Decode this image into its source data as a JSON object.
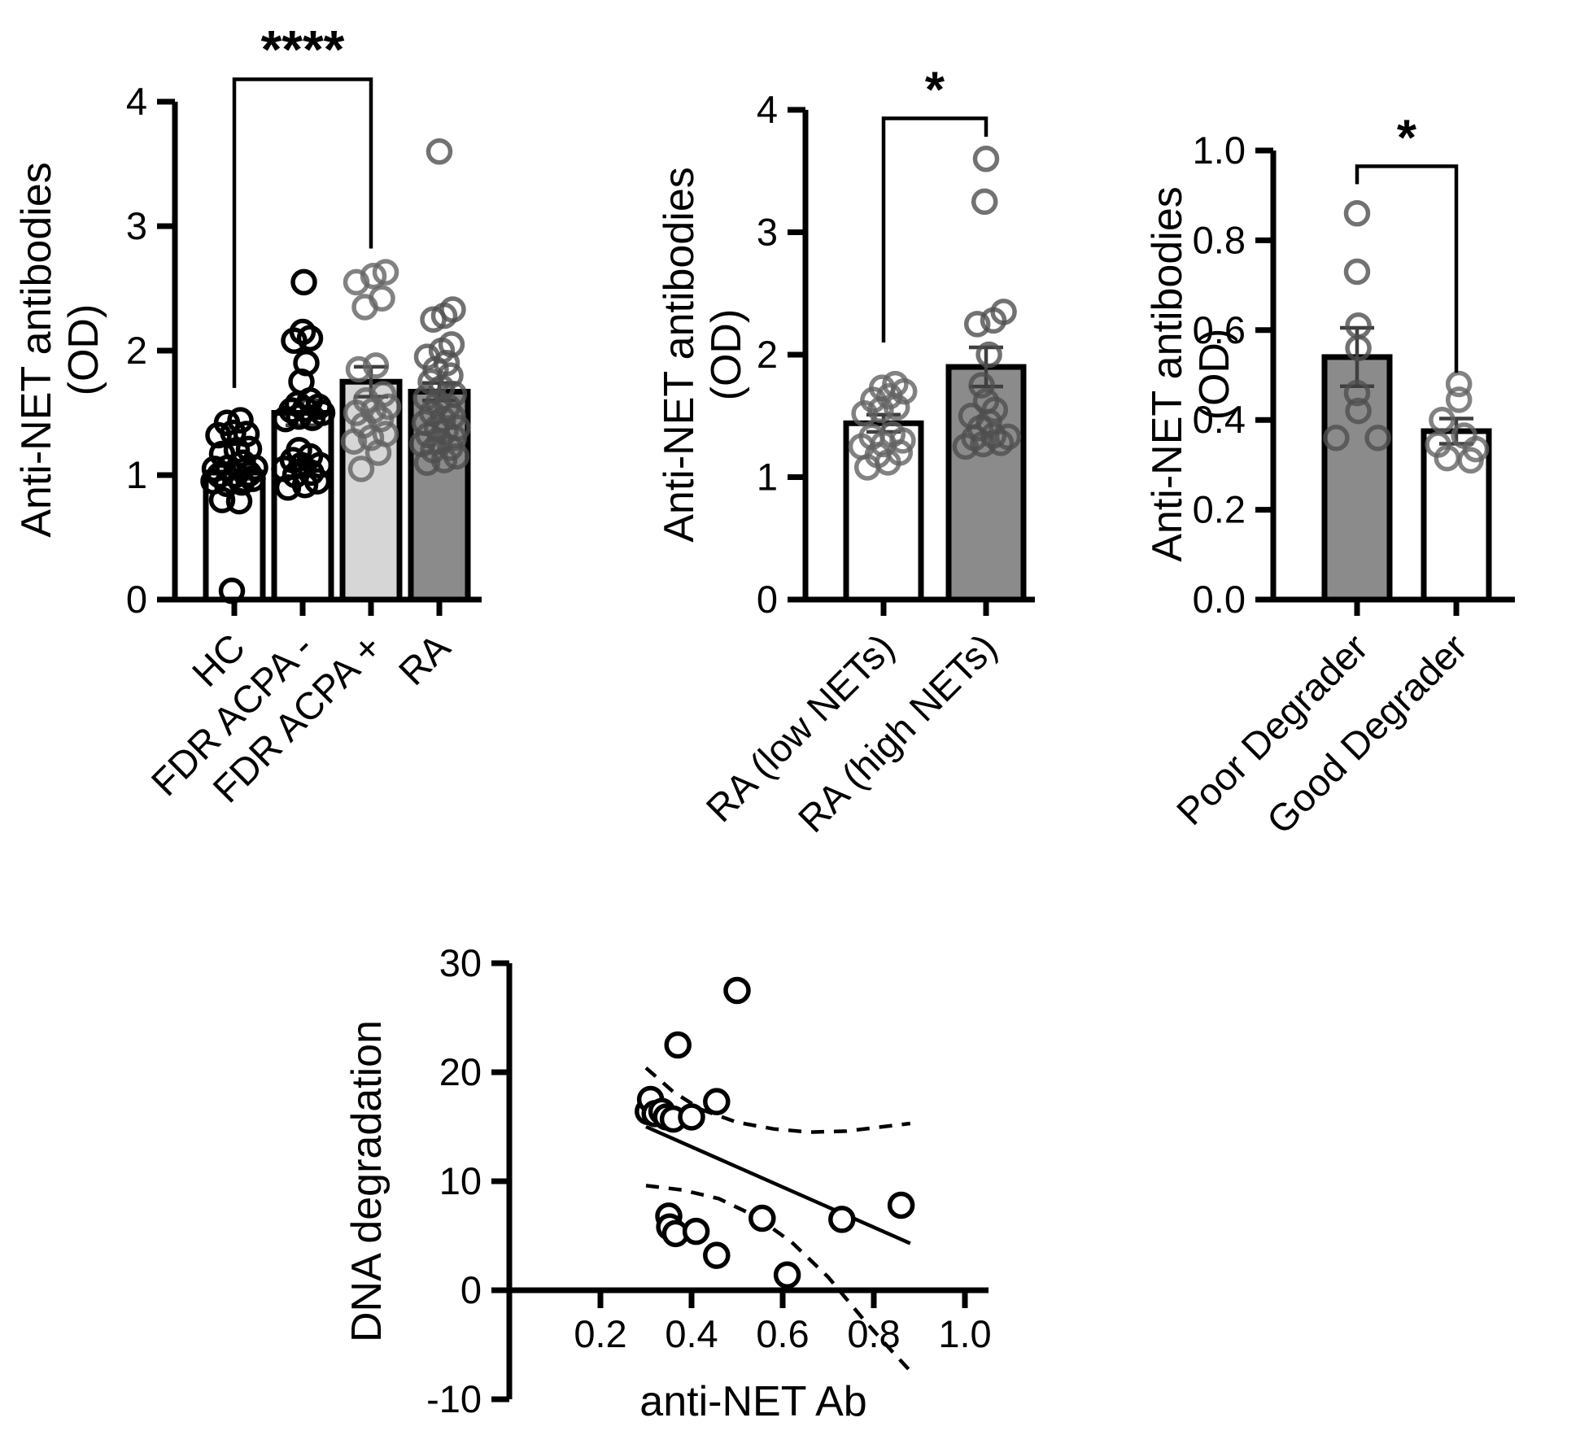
{
  "figure": {
    "background": "#ffffff",
    "description_colors": {
      "axis_black": "#000000",
      "light_gray_bar": "#d6d6d6",
      "dark_gray_bar": "#8b8b8b",
      "white_bar": "#ffffff",
      "gray_point": "#636363",
      "error_bar": "#3f3f3f"
    }
  },
  "chart_data": [
    {
      "id": "anti-net-by-group",
      "type": "bar",
      "ylabel_lines": [
        "Anti-NET antibodies",
        "(OD)"
      ],
      "ylim": [
        0,
        4
      ],
      "ytick_values": [
        0,
        1,
        2,
        3,
        4
      ],
      "ytick_labels": [
        "0",
        "1",
        "2",
        "3",
        "4"
      ],
      "categories": [
        "HC",
        "FDR ACPA -",
        "FDR ACPA +",
        "RA"
      ],
      "bars": [
        {
          "label": "HC",
          "mean": 1.02,
          "sem": 0.05,
          "fill": "#ffffff",
          "point_color": "#000000",
          "point_opacity": 1,
          "points": [
            [
              -0.1,
              0.07
            ],
            [
              -0.5,
              0.8
            ],
            [
              0.2,
              0.79
            ],
            [
              -0.85,
              0.95
            ],
            [
              -0.3,
              0.93
            ],
            [
              0.3,
              0.94
            ],
            [
              0.75,
              0.97
            ],
            [
              -0.6,
              1.0
            ],
            [
              0.05,
              1.0
            ],
            [
              0.6,
              1.01
            ],
            [
              -0.8,
              1.05
            ],
            [
              -0.25,
              1.06
            ],
            [
              0.85,
              1.06
            ],
            [
              0.35,
              1.1
            ],
            [
              -0.5,
              1.17
            ],
            [
              0.1,
              1.2
            ],
            [
              0.6,
              1.21
            ],
            [
              -0.65,
              1.32
            ],
            [
              -0.05,
              1.34
            ],
            [
              0.5,
              1.33
            ],
            [
              -0.3,
              1.42
            ],
            [
              0.25,
              1.44
            ]
          ]
        },
        {
          "label": "FDR ACPA -",
          "mean": 1.5,
          "sem": 0.1,
          "fill": "#ffffff",
          "point_color": "#000000",
          "point_opacity": 1,
          "points": [
            [
              -0.6,
              0.9
            ],
            [
              0.1,
              0.92
            ],
            [
              0.6,
              0.95
            ],
            [
              -0.3,
              1.0
            ],
            [
              0.35,
              1.02
            ],
            [
              -0.75,
              1.05
            ],
            [
              -0.05,
              1.08
            ],
            [
              0.7,
              1.08
            ],
            [
              -0.4,
              1.12
            ],
            [
              0.3,
              1.15
            ],
            [
              -0.15,
              1.2
            ],
            [
              -0.7,
              1.45
            ],
            [
              -0.15,
              1.47
            ],
            [
              0.4,
              1.46
            ],
            [
              0.8,
              1.5
            ],
            [
              -0.45,
              1.52
            ],
            [
              0.1,
              1.53
            ],
            [
              0.65,
              1.55
            ],
            [
              -0.2,
              1.57
            ],
            [
              0.3,
              1.6
            ],
            [
              -0.05,
              1.75
            ],
            [
              0.15,
              1.9
            ],
            [
              -0.35,
              2.08
            ],
            [
              0.3,
              2.1
            ],
            [
              0.0,
              2.15
            ],
            [
              0.05,
              2.55
            ]
          ]
        },
        {
          "label": "FDR ACPA +",
          "mean": 1.75,
          "sem": 0.12,
          "fill": "#d6d6d6",
          "point_color": "#636363",
          "point_opacity": 0.8,
          "points": [
            [
              -0.4,
              1.05
            ],
            [
              0.3,
              1.18
            ],
            [
              -0.7,
              1.27
            ],
            [
              0.0,
              1.3
            ],
            [
              0.6,
              1.33
            ],
            [
              -0.3,
              1.4
            ],
            [
              0.4,
              1.45
            ],
            [
              -0.6,
              1.5
            ],
            [
              0.1,
              1.52
            ],
            [
              0.7,
              1.55
            ],
            [
              -0.2,
              1.6
            ],
            [
              0.5,
              1.65
            ],
            [
              -0.5,
              1.85
            ],
            [
              0.2,
              1.88
            ],
            [
              -0.25,
              2.35
            ],
            [
              0.45,
              2.42
            ],
            [
              -0.6,
              2.55
            ],
            [
              0.1,
              2.6
            ],
            [
              0.6,
              2.63
            ]
          ]
        },
        {
          "label": "RA",
          "mean": 1.67,
          "sem": 0.07,
          "fill": "#8b8b8b",
          "point_color": "#4f4f4f",
          "point_opacity": 0.8,
          "points": [
            [
              -0.5,
              1.1
            ],
            [
              0.2,
              1.12
            ],
            [
              0.7,
              1.15
            ],
            [
              -0.25,
              1.2
            ],
            [
              0.45,
              1.22
            ],
            [
              -0.7,
              1.25
            ],
            [
              0.0,
              1.27
            ],
            [
              0.6,
              1.3
            ],
            [
              -0.45,
              1.32
            ],
            [
              0.25,
              1.35
            ],
            [
              -0.1,
              1.38
            ],
            [
              0.75,
              1.38
            ],
            [
              -0.6,
              1.42
            ],
            [
              0.15,
              1.45
            ],
            [
              0.55,
              1.47
            ],
            [
              -0.3,
              1.5
            ],
            [
              0.35,
              1.55
            ],
            [
              -0.05,
              1.58
            ],
            [
              -0.55,
              1.62
            ],
            [
              0.6,
              1.65
            ],
            [
              0.1,
              1.7
            ],
            [
              -0.35,
              1.75
            ],
            [
              0.45,
              1.8
            ],
            [
              -0.15,
              1.85
            ],
            [
              0.3,
              1.9
            ],
            [
              -0.5,
              1.95
            ],
            [
              0.1,
              2.0
            ],
            [
              0.5,
              2.05
            ],
            [
              -0.25,
              2.25
            ],
            [
              0.2,
              2.28
            ],
            [
              0.55,
              2.33
            ],
            [
              0.0,
              3.6
            ]
          ]
        }
      ],
      "significance": {
        "label": "****",
        "from_group": 0,
        "to_group": 2,
        "bar_value": 4.18,
        "left_drop_value": 1.7,
        "right_drop_value": 2.82
      }
    },
    {
      "id": "anti-net-by-nets",
      "type": "bar",
      "ylabel_lines": [
        "Anti-NET antibodies",
        "(OD)"
      ],
      "ylim": [
        0,
        4
      ],
      "ytick_values": [
        0,
        1,
        2,
        3,
        4
      ],
      "ytick_labels": [
        "0",
        "1",
        "2",
        "3",
        "4"
      ],
      "categories": [
        "RA (low NETs)",
        "RA (high NETs)"
      ],
      "bars": [
        {
          "label": "RA (low NETs)",
          "mean": 1.44,
          "sem": 0.07,
          "fill": "#ffffff",
          "point_color": "#636363",
          "point_opacity": 0.8,
          "points": [
            [
              -0.55,
              1.08
            ],
            [
              0.15,
              1.12
            ],
            [
              -0.2,
              1.18
            ],
            [
              0.55,
              1.2
            ],
            [
              -0.75,
              1.25
            ],
            [
              0.0,
              1.27
            ],
            [
              0.65,
              1.3
            ],
            [
              -0.4,
              1.33
            ],
            [
              0.3,
              1.35
            ],
            [
              -0.65,
              1.52
            ],
            [
              -0.1,
              1.55
            ],
            [
              0.45,
              1.57
            ],
            [
              -0.35,
              1.63
            ],
            [
              0.2,
              1.66
            ],
            [
              0.7,
              1.7
            ],
            [
              -0.05,
              1.73
            ],
            [
              0.4,
              1.76
            ]
          ]
        },
        {
          "label": "RA (high NETs)",
          "mean": 1.9,
          "sem": 0.16,
          "fill": "#8b8b8b",
          "point_color": "#4f4f4f",
          "point_opacity": 0.8,
          "points": [
            [
              -0.7,
              1.25
            ],
            [
              -0.1,
              1.27
            ],
            [
              0.5,
              1.28
            ],
            [
              -0.4,
              1.32
            ],
            [
              0.25,
              1.34
            ],
            [
              0.75,
              1.33
            ],
            [
              -0.2,
              1.4
            ],
            [
              0.1,
              1.45
            ],
            [
              -0.5,
              1.5
            ],
            [
              0.3,
              1.55
            ],
            [
              0.0,
              1.62
            ],
            [
              -0.15,
              1.75
            ],
            [
              0.1,
              2.0
            ],
            [
              -0.3,
              2.25
            ],
            [
              0.25,
              2.28
            ],
            [
              0.6,
              2.35
            ],
            [
              -0.05,
              3.25
            ],
            [
              0.0,
              3.6
            ]
          ]
        }
      ],
      "significance": {
        "label": "*",
        "from_group": 0,
        "to_group": 1,
        "bar_value": 3.93,
        "left_drop_value": 2.1,
        "right_drop_value": 3.78
      }
    },
    {
      "id": "anti-net-by-degrader",
      "type": "bar",
      "ylabel_lines": [
        "Anti-NET antibodies",
        "(OD)"
      ],
      "ylim": [
        0,
        1.0
      ],
      "ytick_values": [
        0,
        0.2,
        0.4,
        0.6,
        0.8,
        1.0
      ],
      "ytick_labels": [
        "0.0",
        "0.2",
        "0.4",
        "0.6",
        "0.8",
        "1.0"
      ],
      "categories": [
        "Poor Degrader",
        "Good Degrader"
      ],
      "bars": [
        {
          "label": "Poor Degrader",
          "mean": 0.54,
          "sem": 0.065,
          "fill": "#8b8b8b",
          "point_color": "#4f4f4f",
          "point_opacity": 0.8,
          "points": [
            [
              0.0,
              0.86
            ],
            [
              0.0,
              0.73
            ],
            [
              0.05,
              0.61
            ],
            [
              0.05,
              0.56
            ],
            [
              0.0,
              0.46
            ],
            [
              0.05,
              0.42
            ],
            [
              -0.8,
              0.36
            ],
            [
              0.8,
              0.36
            ]
          ]
        },
        {
          "label": "Good Degrader",
          "mean": 0.375,
          "sem": 0.028,
          "fill": "#ffffff",
          "point_color": "#636363",
          "point_opacity": 0.8,
          "points": [
            [
              0.1,
              0.48
            ],
            [
              0.1,
              0.445
            ],
            [
              -0.55,
              0.4
            ],
            [
              0.3,
              0.365
            ],
            [
              -0.7,
              0.345
            ],
            [
              0.75,
              0.335
            ],
            [
              -0.35,
              0.315
            ],
            [
              0.55,
              0.31
            ]
          ]
        }
      ],
      "significance": {
        "label": "*",
        "from_group": 0,
        "to_group": 1,
        "bar_value": 0.965,
        "left_drop_value": 0.925,
        "right_drop_value": 0.505
      }
    },
    {
      "id": "dna-degradation-vs-anti-net-ab",
      "type": "scatter",
      "xlabel": "anti-NET Ab",
      "ylabel": "DNA degradation",
      "xlim": [
        0,
        1.0
      ],
      "ylim": [
        -10,
        30
      ],
      "xtick_values": [
        0.2,
        0.4,
        0.6,
        0.8,
        1.0
      ],
      "xtick_labels": [
        "0.2",
        "0.4",
        "0.6",
        "0.8",
        "1.0"
      ],
      "ytick_values": [
        -10,
        0,
        10,
        20,
        30
      ],
      "ytick_labels": [
        "-10",
        "0",
        "10",
        "20",
        "30"
      ],
      "points": [
        [
          0.305,
          16.4
        ],
        [
          0.31,
          17.5
        ],
        [
          0.32,
          16.2
        ],
        [
          0.335,
          16.4
        ],
        [
          0.345,
          15.9
        ],
        [
          0.36,
          15.7
        ],
        [
          0.4,
          15.9
        ],
        [
          0.37,
          22.5
        ],
        [
          0.455,
          17.3
        ],
        [
          0.5,
          27.5
        ],
        [
          0.35,
          6.8
        ],
        [
          0.352,
          5.8
        ],
        [
          0.365,
          5.2
        ],
        [
          0.41,
          5.4
        ],
        [
          0.455,
          3.2
        ],
        [
          0.555,
          6.6
        ],
        [
          0.61,
          1.4
        ],
        [
          0.73,
          6.5
        ],
        [
          0.86,
          7.8
        ]
      ],
      "fit_line": [
        [
          0.3,
          15.0
        ],
        [
          0.88,
          4.3
        ]
      ],
      "ci_upper": [
        [
          0.3,
          20.4
        ],
        [
          0.36,
          18.2
        ],
        [
          0.42,
          16.6
        ],
        [
          0.5,
          15.4
        ],
        [
          0.58,
          14.8
        ],
        [
          0.66,
          14.5
        ],
        [
          0.74,
          14.6
        ],
        [
          0.82,
          15.0
        ],
        [
          0.88,
          15.3
        ]
      ],
      "ci_lower": [
        [
          0.3,
          9.6
        ],
        [
          0.38,
          9.2
        ],
        [
          0.46,
          8.4
        ],
        [
          0.54,
          6.8
        ],
        [
          0.62,
          4.4
        ],
        [
          0.7,
          1.2
        ],
        [
          0.78,
          -2.8
        ],
        [
          0.84,
          -5.6
        ],
        [
          0.88,
          -7.4
        ]
      ]
    }
  ]
}
